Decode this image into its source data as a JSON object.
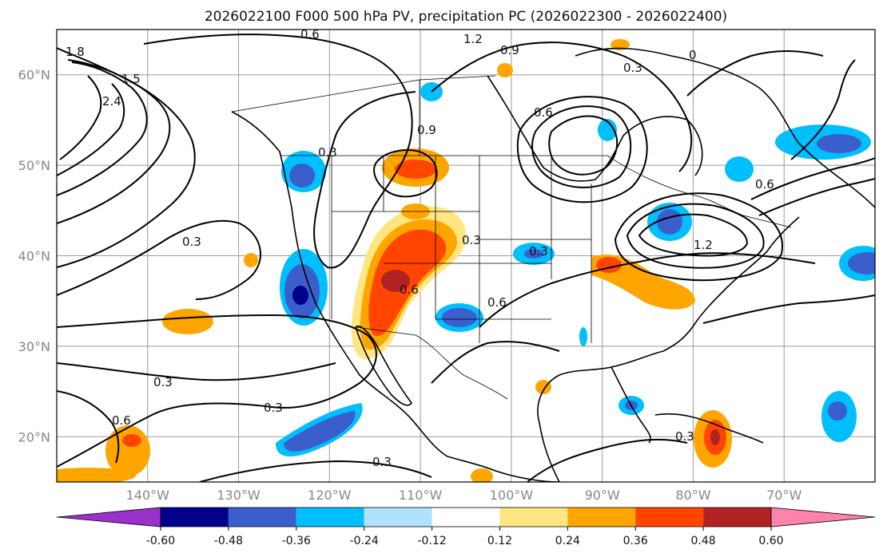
{
  "title": "2026022100 F000 500 hPa PV, precipitation PC (2026022300 - 2026022400)",
  "map": {
    "projection": "plate-carree",
    "lon_range": [
      -150,
      -60
    ],
    "lat_range": [
      15,
      65
    ],
    "lat_ticks": [
      {
        "value": 60,
        "label": "60°N"
      },
      {
        "value": 50,
        "label": "50°N"
      },
      {
        "value": 40,
        "label": "40°N"
      },
      {
        "value": 30,
        "label": "30°N"
      },
      {
        "value": 20,
        "label": "20°N"
      }
    ],
    "lon_ticks": [
      {
        "value": -140,
        "label": "140°W"
      },
      {
        "value": -130,
        "label": "130°W"
      },
      {
        "value": -120,
        "label": "120°W"
      },
      {
        "value": -110,
        "label": "110°W"
      },
      {
        "value": -100,
        "label": "100°W"
      },
      {
        "value": -90,
        "label": "90°W"
      },
      {
        "value": -80,
        "label": "80°W"
      },
      {
        "value": -70,
        "label": "70°W"
      }
    ],
    "pv_contour_labels": [
      "0.6",
      "1.2",
      "0.9",
      "0.3",
      "1.8",
      "2.4",
      "1.5",
      "0",
      "0.9",
      "0.6",
      "0.3",
      "1.2",
      "0.6",
      "0.3",
      "0.3",
      "0.3",
      "0.6",
      "0.3",
      "0.3",
      "0.6",
      "0.6",
      "0.3",
      "0.3"
    ]
  },
  "colorbar": {
    "bounds": [
      "-0.60",
      "-0.48",
      "-0.36",
      "-0.24",
      "-0.12",
      "0.12",
      "0.24",
      "0.36",
      "0.48",
      "0.60"
    ],
    "colors": [
      "#9932cc",
      "#00008b",
      "#3a5fcd",
      "#00bfff",
      "#b0e2ff",
      "#ffffff",
      "#ffe680",
      "#ffa500",
      "#ff4500",
      "#b22222",
      "#ff82ab"
    ]
  },
  "chart_data": {
    "type": "map-contour",
    "title": "2026022100 F000 500 hPa PV, precipitation PC (2026022300 - 2026022400)",
    "fields": [
      "500 hPa PV (contours)",
      "precipitation PC (shaded)"
    ],
    "extent": {
      "lon": [
        -150,
        -60
      ],
      "lat": [
        15,
        65
      ]
    },
    "colorbar_levels": [
      -0.6,
      -0.48,
      -0.36,
      -0.24,
      -0.12,
      0.12,
      0.24,
      0.36,
      0.48,
      0.6
    ]
  }
}
